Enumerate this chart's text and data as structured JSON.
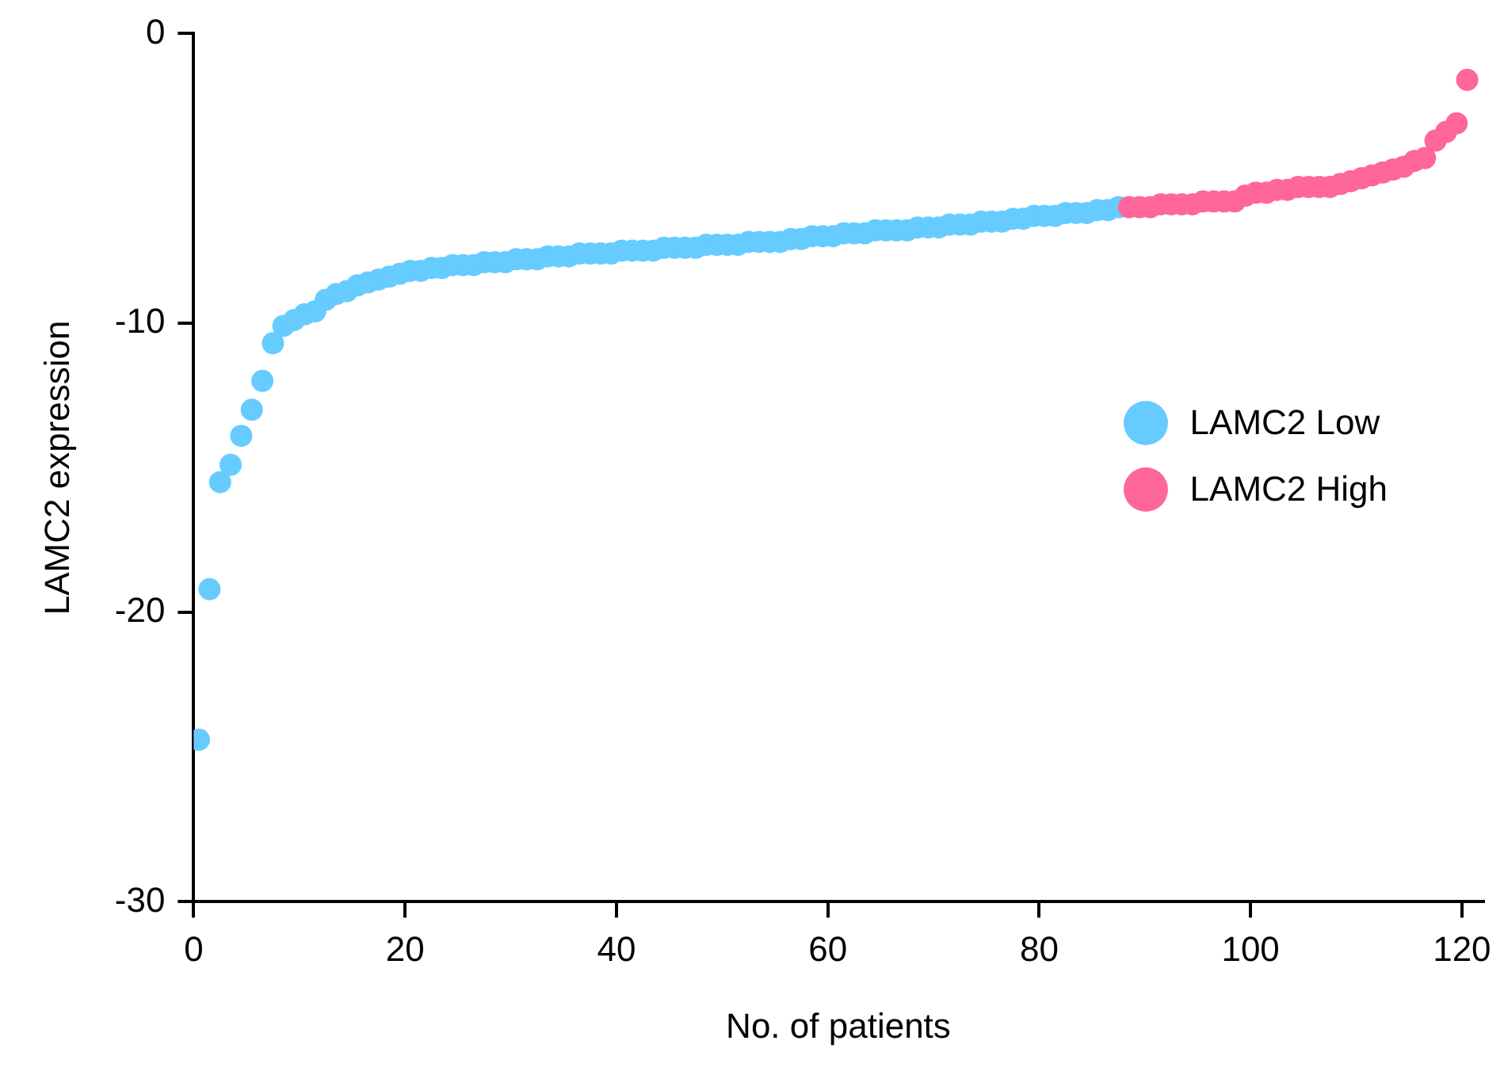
{
  "chart_data": {
    "type": "scatter",
    "xlabel": "No. of patients",
    "ylabel": "LAMC2 expression",
    "xlim": [
      0,
      122
    ],
    "xticks": [
      0,
      20,
      40,
      60,
      80,
      100,
      120
    ],
    "ylim": [
      -30,
      0
    ],
    "yticks": [
      -30,
      -20,
      -10,
      0
    ],
    "grid": false,
    "legend": "right",
    "marker": "circle",
    "series": [
      {
        "name": "LAMC2 Low",
        "color": "#66ccff",
        "x": [
          0.5,
          1.5,
          2.5,
          3.5,
          4.5,
          5.5,
          6.5,
          7.5,
          8.5,
          9.5,
          10.5,
          11.5,
          12.5,
          13.5,
          14.5,
          15.5,
          16.5,
          17.5,
          18.5,
          19.5,
          20.5,
          21.5,
          22.5,
          23.5,
          24.5,
          25.5,
          26.5,
          27.5,
          28.5,
          29.5,
          30.5,
          31.5,
          32.5,
          33.5,
          34.5,
          35.5,
          36.5,
          37.5,
          38.5,
          39.5,
          40.5,
          41.5,
          42.5,
          43.5,
          44.5,
          45.5,
          46.5,
          47.5,
          48.5,
          49.5,
          50.5,
          51.5,
          52.5,
          53.5,
          54.5,
          55.5,
          56.5,
          57.5,
          58.5,
          59.5,
          60.5,
          61.5,
          62.5,
          63.5,
          64.5,
          65.5,
          66.5,
          67.5,
          68.5,
          69.5,
          70.5,
          71.5,
          72.5,
          73.5,
          74.5,
          75.5,
          76.5,
          77.5,
          78.5,
          79.5,
          80.5,
          81.5,
          82.5,
          83.5,
          84.5,
          85.5,
          86.5,
          87.5
        ],
        "values": [
          -24.4,
          -19.2,
          -15.5,
          -14.9,
          -13.9,
          -13.0,
          -12.0,
          -10.7,
          -10.1,
          -9.9,
          -9.7,
          -9.6,
          -9.2,
          -9.0,
          -8.9,
          -8.7,
          -8.6,
          -8.5,
          -8.4,
          -8.3,
          -8.2,
          -8.2,
          -8.1,
          -8.1,
          -8.0,
          -8.0,
          -8.0,
          -7.9,
          -7.9,
          -7.9,
          -7.8,
          -7.8,
          -7.8,
          -7.7,
          -7.7,
          -7.7,
          -7.6,
          -7.6,
          -7.6,
          -7.6,
          -7.5,
          -7.5,
          -7.5,
          -7.5,
          -7.4,
          -7.4,
          -7.4,
          -7.4,
          -7.3,
          -7.3,
          -7.3,
          -7.3,
          -7.2,
          -7.2,
          -7.2,
          -7.2,
          -7.1,
          -7.1,
          -7.0,
          -7.0,
          -7.0,
          -6.9,
          -6.9,
          -6.9,
          -6.8,
          -6.8,
          -6.8,
          -6.8,
          -6.7,
          -6.7,
          -6.7,
          -6.6,
          -6.6,
          -6.6,
          -6.5,
          -6.5,
          -6.5,
          -6.4,
          -6.4,
          -6.3,
          -6.3,
          -6.3,
          -6.2,
          -6.2,
          -6.2,
          -6.1,
          -6.1,
          -6.0
        ]
      },
      {
        "name": "LAMC2 High",
        "color": "#ff6699",
        "x": [
          88.5,
          89.5,
          90.5,
          91.5,
          92.5,
          93.5,
          94.5,
          95.5,
          96.5,
          97.5,
          98.5,
          99.5,
          100.5,
          101.5,
          102.5,
          103.5,
          104.5,
          105.5,
          106.5,
          107.5,
          108.5,
          109.5,
          110.5,
          111.5,
          112.5,
          113.5,
          114.5,
          115.5,
          116.5,
          117.5,
          118.5,
          119.5,
          120.5
        ],
        "values": [
          -6.0,
          -6.0,
          -6.0,
          -5.9,
          -5.9,
          -5.9,
          -5.9,
          -5.8,
          -5.8,
          -5.8,
          -5.8,
          -5.6,
          -5.5,
          -5.5,
          -5.4,
          -5.4,
          -5.3,
          -5.3,
          -5.3,
          -5.3,
          -5.2,
          -5.1,
          -5.0,
          -4.9,
          -4.8,
          -4.7,
          -4.6,
          -4.4,
          -4.3,
          -3.7,
          -3.4,
          -3.1,
          -1.6
        ]
      }
    ]
  }
}
